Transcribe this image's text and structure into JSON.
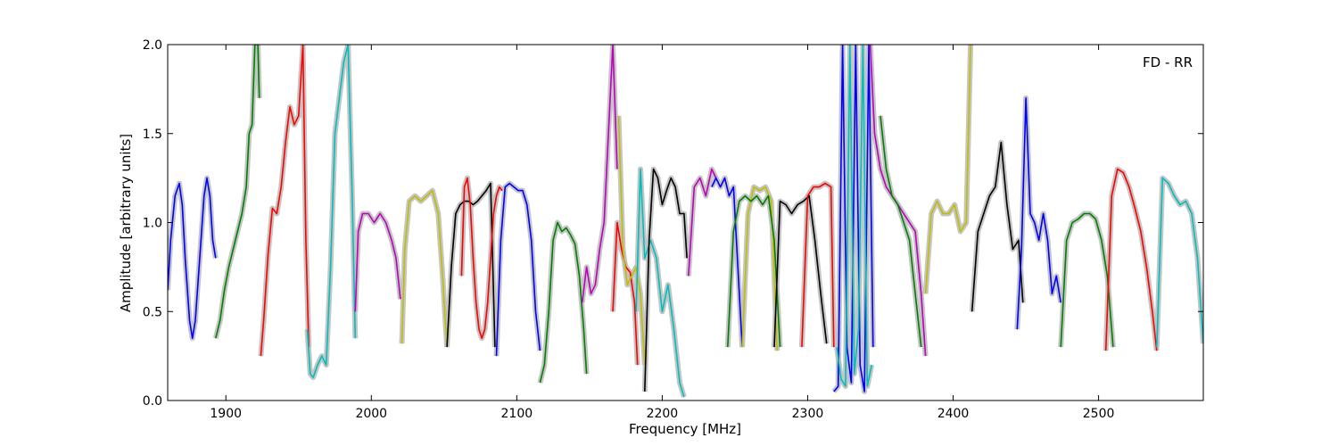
{
  "chart_data": {
    "type": "line",
    "title": "",
    "annotation": "FD - RR",
    "xlabel": "Frequency [MHz]",
    "ylabel": "Amplitude [arbitrary units]",
    "xlim": [
      1860,
      2572
    ],
    "ylim": [
      0,
      2.0
    ],
    "x_ticks": [
      1900,
      2000,
      2100,
      2200,
      2300,
      2400,
      2500
    ],
    "y_ticks": [
      0.0,
      0.5,
      1.0,
      1.5,
      2.0
    ],
    "y_tick_labels": [
      "0.0",
      "0.5",
      "1.0",
      "1.5",
      "2.0"
    ],
    "grid": false,
    "legend": "none",
    "background_series_color": "#bfbfbf",
    "series": [
      {
        "color": "#0000ff",
        "x": [
          1860,
          1862,
          1865,
          1868,
          1870,
          1872,
          1875,
          1877,
          1879,
          1882,
          1885,
          1887,
          1889,
          1891,
          1893
        ],
        "y": [
          0.62,
          0.9,
          1.15,
          1.22,
          1.1,
          0.8,
          0.45,
          0.35,
          0.45,
          0.8,
          1.15,
          1.25,
          1.15,
          0.9,
          0.8
        ]
      },
      {
        "color": "#008000",
        "x": [
          1893,
          1896,
          1899,
          1902,
          1905,
          1908,
          1911,
          1914,
          1916,
          1918,
          1920,
          1922,
          1923
        ],
        "y": [
          0.35,
          0.45,
          0.62,
          0.75,
          0.85,
          0.95,
          1.05,
          1.2,
          1.5,
          1.55,
          2.0,
          2.0,
          1.7
        ]
      },
      {
        "color": "#ff0000",
        "x": [
          1924,
          1926,
          1929,
          1932,
          1935,
          1938,
          1941,
          1944,
          1947,
          1950,
          1953,
          1955,
          1957
        ],
        "y": [
          0.25,
          0.45,
          0.82,
          1.08,
          1.05,
          1.2,
          1.45,
          1.65,
          1.55,
          1.6,
          2.0,
          0.9,
          0.3
        ]
      },
      {
        "color": "#00bfbf",
        "x": [
          1956,
          1958,
          1960,
          1963,
          1966,
          1969,
          1972,
          1975,
          1978,
          1981,
          1984,
          1987,
          1989
        ],
        "y": [
          0.4,
          0.15,
          0.13,
          0.2,
          0.25,
          0.2,
          0.75,
          1.5,
          1.7,
          1.9,
          2.0,
          1.1,
          0.35
        ]
      },
      {
        "color": "#bf00bf",
        "x": [
          1989,
          1991,
          1994,
          1998,
          2002,
          2006,
          2010,
          2014,
          2017,
          2020
        ],
        "y": [
          0.5,
          0.95,
          1.05,
          1.05,
          1.0,
          1.05,
          1.0,
          0.9,
          0.8,
          0.57
        ]
      },
      {
        "color": "#bfbf00",
        "x": [
          2021,
          2023,
          2026,
          2030,
          2034,
          2038,
          2042,
          2046,
          2049,
          2052
        ],
        "y": [
          0.32,
          0.85,
          1.12,
          1.15,
          1.12,
          1.15,
          1.18,
          1.05,
          0.7,
          0.3
        ]
      },
      {
        "color": "#000000",
        "x": [
          2052,
          2055,
          2058,
          2061,
          2064,
          2067,
          2070,
          2073,
          2076,
          2079,
          2082,
          2085
        ],
        "y": [
          0.3,
          0.75,
          1.05,
          1.1,
          1.12,
          1.12,
          1.1,
          1.12,
          1.15,
          1.18,
          1.22,
          0.3
        ]
      },
      {
        "color": "#ff0000",
        "x": [
          2062,
          2064,
          2066,
          2068,
          2070,
          2072,
          2074,
          2076,
          2078,
          2080,
          2082,
          2084,
          2086,
          2088,
          2090
        ],
        "y": [
          0.7,
          1.2,
          1.25,
          1.1,
          0.8,
          0.55,
          0.4,
          0.35,
          0.4,
          0.55,
          0.8,
          1.05,
          1.15,
          1.2,
          1.18
        ]
      },
      {
        "color": "#0000ff",
        "x": [
          2086,
          2089,
          2092,
          2095,
          2098,
          2101,
          2104,
          2107,
          2110,
          2113,
          2116
        ],
        "y": [
          0.25,
          0.9,
          1.2,
          1.22,
          1.2,
          1.18,
          1.18,
          1.1,
          0.9,
          0.5,
          0.28
        ]
      },
      {
        "color": "#008000",
        "x": [
          2116,
          2119,
          2122,
          2125,
          2128,
          2131,
          2134,
          2137,
          2140,
          2143,
          2146,
          2148
        ],
        "y": [
          0.1,
          0.2,
          0.5,
          0.9,
          1.0,
          0.95,
          0.97,
          0.93,
          0.88,
          0.7,
          0.4,
          0.15
        ]
      },
      {
        "color": "#bf00bf",
        "x": [
          2145,
          2148,
          2151,
          2154,
          2157,
          2160,
          2163,
          2166,
          2169
        ],
        "y": [
          0.55,
          0.75,
          0.6,
          0.65,
          0.85,
          1.0,
          1.5,
          2.0,
          1.3
        ]
      },
      {
        "color": "#ff0000",
        "x": [
          2166,
          2169,
          2172,
          2175,
          2178,
          2181,
          2183
        ],
        "y": [
          0.5,
          1.0,
          0.85,
          0.75,
          0.72,
          0.55,
          0.2
        ]
      },
      {
        "color": "#bfbf00",
        "x": [
          2170,
          2173,
          2176,
          2179,
          2182,
          2185,
          2188
        ],
        "y": [
          1.6,
          0.85,
          0.65,
          0.7,
          0.75,
          0.6,
          0.2
        ]
      },
      {
        "color": "#00bfbf",
        "x": [
          2182,
          2185,
          2188,
          2192,
          2196,
          2200,
          2204,
          2208,
          2212,
          2215
        ],
        "y": [
          0.5,
          1.3,
          0.8,
          0.9,
          0.8,
          0.5,
          0.65,
          0.4,
          0.1,
          0.02
        ]
      },
      {
        "color": "#000000",
        "x": [
          2188,
          2191,
          2194,
          2197,
          2200,
          2203,
          2206,
          2209,
          2212,
          2215,
          2217
        ],
        "y": [
          0.05,
          0.9,
          1.3,
          1.25,
          1.1,
          1.18,
          1.25,
          1.2,
          1.05,
          1.05,
          0.8
        ]
      },
      {
        "color": "#bf00bf",
        "x": [
          2218,
          2222,
          2226,
          2230,
          2234,
          2237
        ],
        "y": [
          0.7,
          1.2,
          1.25,
          1.15,
          1.3,
          1.25
        ]
      },
      {
        "color": "#0000ff",
        "x": [
          2234,
          2237,
          2240,
          2243,
          2246,
          2249,
          2252,
          2255
        ],
        "y": [
          1.2,
          1.25,
          1.2,
          1.25,
          1.15,
          1.2,
          0.75,
          0.3
        ]
      },
      {
        "color": "#bfbf00",
        "x": [
          2255,
          2259,
          2263,
          2267,
          2271,
          2275,
          2279
        ],
        "y": [
          0.3,
          1.05,
          1.2,
          1.18,
          1.2,
          1.12,
          0.28
        ]
      },
      {
        "color": "#008000",
        "x": [
          2245,
          2249,
          2253,
          2257,
          2261,
          2265,
          2269,
          2273,
          2277,
          2281
        ],
        "y": [
          0.3,
          0.95,
          1.12,
          1.15,
          1.12,
          1.15,
          1.1,
          1.15,
          0.9,
          0.3
        ]
      },
      {
        "color": "#000000",
        "x": [
          2277,
          2281,
          2285,
          2289,
          2293,
          2297,
          2301,
          2305,
          2309,
          2313
        ],
        "y": [
          0.3,
          1.12,
          1.1,
          1.05,
          1.1,
          1.12,
          1.15,
          0.9,
          0.6,
          0.32
        ]
      },
      {
        "color": "#ff0000",
        "x": [
          2296,
          2300,
          2304,
          2308,
          2312,
          2316,
          2318
        ],
        "y": [
          0.3,
          1.15,
          1.2,
          1.2,
          1.22,
          1.2,
          0.3
        ]
      },
      {
        "color": "#0000ff",
        "x": [
          2318,
          2321,
          2324,
          2327,
          2330,
          2333,
          2336,
          2339,
          2342,
          2345
        ],
        "y": [
          0.05,
          0.08,
          2.0,
          0.3,
          0.1,
          2.0,
          0.2,
          0.05,
          2.0,
          0.3
        ]
      },
      {
        "color": "#00bfbf",
        "x": [
          2320,
          2323,
          2326,
          2329,
          2332,
          2335,
          2338,
          2341,
          2344
        ],
        "y": [
          0.3,
          0.12,
          0.08,
          2.0,
          0.15,
          0.4,
          2.0,
          0.08,
          0.2
        ]
      },
      {
        "color": "#bf00bf",
        "x": [
          2343,
          2346,
          2350,
          2354,
          2358,
          2362,
          2366,
          2370,
          2374,
          2378,
          2381
        ],
        "y": [
          2.0,
          1.5,
          1.3,
          1.2,
          1.15,
          1.1,
          1.05,
          1.0,
          0.95,
          0.6,
          0.25
        ]
      },
      {
        "color": "#008000",
        "x": [
          2350,
          2354,
          2358,
          2362,
          2366,
          2370,
          2374,
          2378
        ],
        "y": [
          1.6,
          1.3,
          1.15,
          1.1,
          1.0,
          0.9,
          0.6,
          0.3
        ]
      },
      {
        "color": "#bfbf00",
        "x": [
          2381,
          2385,
          2389,
          2393,
          2397,
          2401,
          2405,
          2409,
          2412
        ],
        "y": [
          0.6,
          1.05,
          1.12,
          1.05,
          1.05,
          1.1,
          0.95,
          1.0,
          2.0
        ]
      },
      {
        "color": "#000000",
        "x": [
          2413,
          2417,
          2421,
          2425,
          2429,
          2433,
          2437,
          2441,
          2445,
          2448
        ],
        "y": [
          0.5,
          0.95,
          1.05,
          1.15,
          1.2,
          1.45,
          1.1,
          0.85,
          0.9,
          0.55
        ]
      },
      {
        "color": "#0000ff",
        "x": [
          2444,
          2447,
          2450,
          2453,
          2456,
          2459,
          2462,
          2465,
          2468,
          2471,
          2474
        ],
        "y": [
          0.4,
          0.85,
          1.7,
          1.05,
          1.0,
          0.9,
          1.05,
          0.9,
          0.6,
          0.7,
          0.55
        ]
      },
      {
        "color": "#008000",
        "x": [
          2474,
          2478,
          2482,
          2486,
          2490,
          2494,
          2498,
          2502,
          2506,
          2510
        ],
        "y": [
          0.3,
          0.9,
          1.0,
          1.02,
          1.05,
          1.05,
          1.02,
          0.9,
          0.7,
          0.3
        ]
      },
      {
        "color": "#ff0000",
        "x": [
          2505,
          2509,
          2513,
          2517,
          2521,
          2525,
          2529,
          2533,
          2537,
          2540
        ],
        "y": [
          0.28,
          1.15,
          1.3,
          1.28,
          1.2,
          1.08,
          0.95,
          0.75,
          0.5,
          0.28
        ]
      },
      {
        "color": "#00bfbf",
        "x": [
          2540,
          2544,
          2548,
          2552,
          2556,
          2560,
          2564,
          2568,
          2572
        ],
        "y": [
          0.3,
          1.25,
          1.22,
          1.15,
          1.1,
          1.12,
          1.05,
          0.8,
          0.32
        ]
      }
    ]
  }
}
